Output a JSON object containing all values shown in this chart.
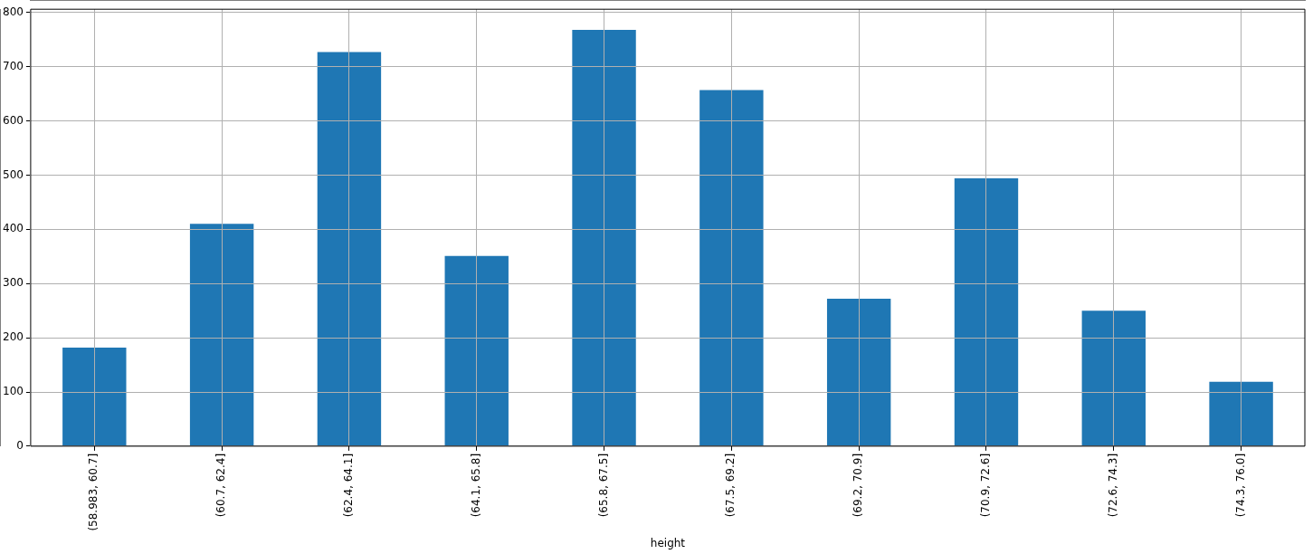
{
  "chart_data": {
    "type": "bar",
    "xlabel": "height",
    "categories": [
      "(58.983, 60.7]",
      "(60.7, 62.4]",
      "(62.4, 64.1]",
      "(64.1, 65.8]",
      "(65.8, 67.5]",
      "(67.5, 69.2]",
      "(69.2, 70.9]",
      "(70.9, 72.6]",
      "(72.6, 74.3]",
      "(74.3, 76.0]"
    ],
    "values": [
      182,
      410,
      727,
      351,
      768,
      657,
      272,
      494,
      250,
      119
    ],
    "color": "#1f77b4",
    "ylim": [
      0,
      806
    ],
    "yticks": [
      0,
      100,
      200,
      300,
      400,
      500,
      600,
      700,
      800
    ],
    "grid": true,
    "legend": false
  }
}
